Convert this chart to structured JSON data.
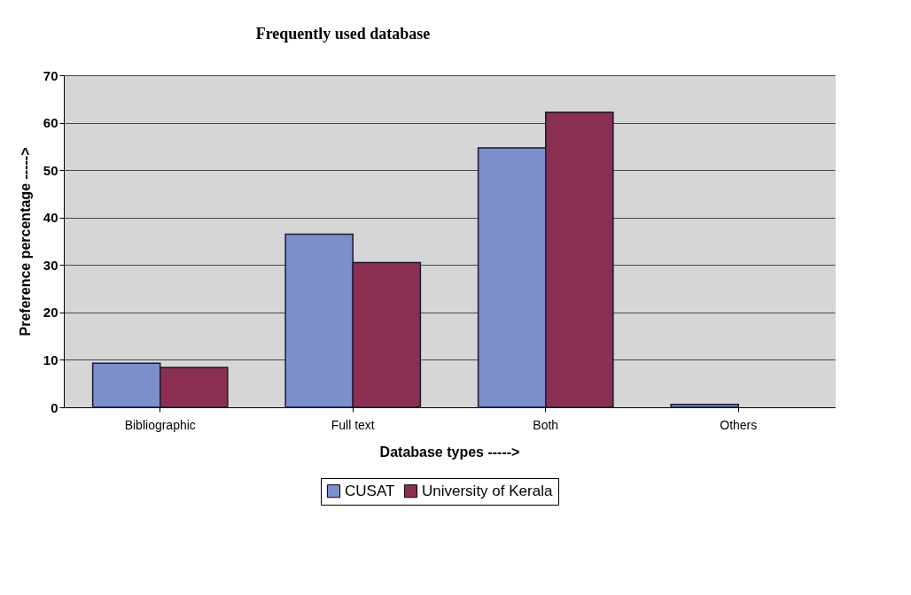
{
  "chart_data": {
    "type": "bar",
    "title": "Frequently used database",
    "xlabel": "Database types ----->",
    "ylabel": "Preference percentage ----->",
    "categories": [
      "Bibliographic",
      "Full text",
      "Both",
      "Others"
    ],
    "series": [
      {
        "name": "CUSAT",
        "color": "#7b8fcc",
        "values": [
          9.3,
          36.5,
          54.7,
          0.6
        ]
      },
      {
        "name": "University of Kerala",
        "color": "#8b2f52",
        "values": [
          8.4,
          30.5,
          62.2,
          0
        ]
      }
    ],
    "ylim": [
      0,
      70
    ],
    "yticks": [
      0,
      10,
      20,
      30,
      40,
      50,
      60,
      70
    ],
    "grid": "y",
    "legend": "bottom"
  }
}
